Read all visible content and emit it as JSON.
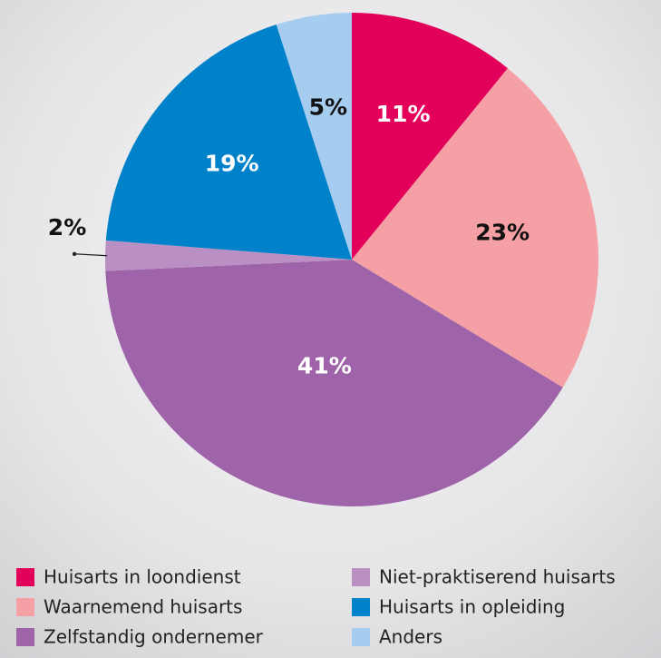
{
  "chart_data": {
    "type": "pie",
    "categories": [
      "Huisarts in loondienst",
      "Waarnemend huisarts",
      "Zelfstandig ondernemer",
      "Niet-praktiserend huisarts",
      "Huisarts in opleiding",
      "Anders"
    ],
    "values": [
      11,
      23,
      41,
      2,
      19,
      5
    ],
    "value_labels": [
      "11%",
      "23%",
      "41%",
      "2%",
      "19%",
      "5%"
    ],
    "colors": [
      "#e2005a",
      "#f4a0a4",
      "#9e63a8",
      "#b98fc4",
      "#0082ca",
      "#a6cdef"
    ]
  }
}
